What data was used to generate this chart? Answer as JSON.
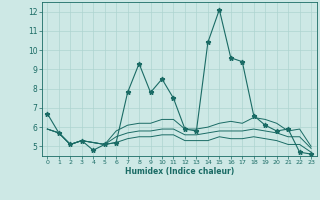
{
  "title": "",
  "xlabel": "Humidex (Indice chaleur)",
  "ylabel": "",
  "xlim": [
    -0.5,
    23.5
  ],
  "ylim": [
    4.5,
    12.5
  ],
  "yticks": [
    5,
    6,
    7,
    8,
    9,
    10,
    11,
    12
  ],
  "xticks": [
    0,
    1,
    2,
    3,
    4,
    5,
    6,
    7,
    8,
    9,
    10,
    11,
    12,
    13,
    14,
    15,
    16,
    17,
    18,
    19,
    20,
    21,
    22,
    23
  ],
  "background_color": "#cde8e5",
  "grid_color": "#aed4d0",
  "line_color": "#1a6b65",
  "lines": [
    [
      6.7,
      5.7,
      5.1,
      5.3,
      4.8,
      5.1,
      5.2,
      7.8,
      9.3,
      7.8,
      8.5,
      7.5,
      5.9,
      5.8,
      10.4,
      12.1,
      9.6,
      9.4,
      6.6,
      6.1,
      5.8,
      5.9,
      4.7,
      4.6
    ],
    [
      5.9,
      5.7,
      5.1,
      5.3,
      5.2,
      5.1,
      5.8,
      6.1,
      6.2,
      6.2,
      6.4,
      6.4,
      5.9,
      5.9,
      6.0,
      6.2,
      6.3,
      6.2,
      6.5,
      6.4,
      6.2,
      5.8,
      5.9,
      5.0
    ],
    [
      5.9,
      5.7,
      5.1,
      5.3,
      5.2,
      5.1,
      5.5,
      5.7,
      5.8,
      5.8,
      5.9,
      5.9,
      5.6,
      5.6,
      5.7,
      5.8,
      5.8,
      5.8,
      5.9,
      5.8,
      5.7,
      5.5,
      5.5,
      4.9
    ],
    [
      5.9,
      5.7,
      5.1,
      5.3,
      5.2,
      5.1,
      5.2,
      5.4,
      5.5,
      5.5,
      5.6,
      5.6,
      5.3,
      5.3,
      5.3,
      5.5,
      5.4,
      5.4,
      5.5,
      5.4,
      5.3,
      5.1,
      5.1,
      4.7
    ]
  ]
}
